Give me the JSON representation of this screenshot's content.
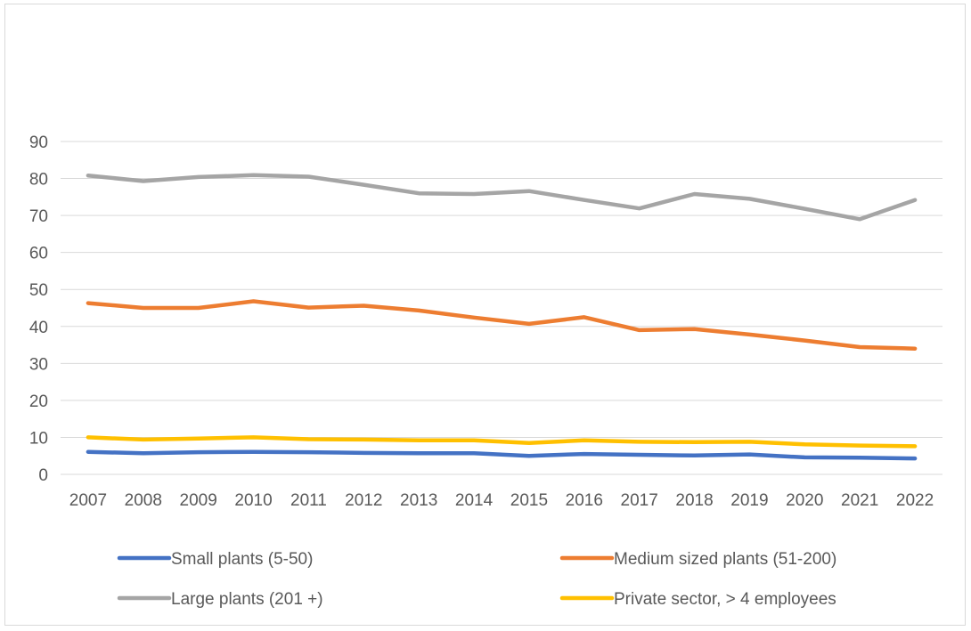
{
  "chart_data": {
    "type": "line",
    "title": "",
    "xlabel": "",
    "ylabel": "",
    "categories": [
      "2007",
      "2008",
      "2009",
      "2010",
      "2011",
      "2012",
      "2013",
      "2014",
      "2015",
      "2016",
      "2017",
      "2018",
      "2019",
      "2020",
      "2021",
      "2022"
    ],
    "ylim": [
      0,
      90
    ],
    "yticks": [
      0,
      10,
      20,
      30,
      40,
      50,
      60,
      70,
      80,
      90
    ],
    "grid": true,
    "legend_position": "bottom",
    "series": [
      {
        "name": "Small plants (5-50)",
        "color": "#4472c4",
        "values": [
          6.1,
          5.7,
          6.0,
          6.1,
          6.0,
          5.8,
          5.7,
          5.7,
          5.0,
          5.5,
          5.3,
          5.1,
          5.4,
          4.6,
          4.5,
          4.3
        ]
      },
      {
        "name": "Medium sized plants (51-200)",
        "color": "#ed7d31",
        "values": [
          46.3,
          45.0,
          45.0,
          46.8,
          45.1,
          45.6,
          44.3,
          42.4,
          40.7,
          42.5,
          39.0,
          39.3,
          37.8,
          36.2,
          34.4,
          34.0
        ]
      },
      {
        "name": "Large plants (201 +)",
        "color": "#a5a5a5",
        "values": [
          80.8,
          79.3,
          80.4,
          80.9,
          80.5,
          78.3,
          76.0,
          75.8,
          76.6,
          74.2,
          71.9,
          75.8,
          74.5,
          71.8,
          69.0,
          74.2
        ]
      },
      {
        "name": "Private sector, > 4 employees",
        "color": "#ffc000",
        "values": [
          10.0,
          9.4,
          9.7,
          10.0,
          9.5,
          9.4,
          9.2,
          9.2,
          8.5,
          9.2,
          8.8,
          8.7,
          8.8,
          8.1,
          7.8,
          7.6
        ]
      }
    ]
  }
}
